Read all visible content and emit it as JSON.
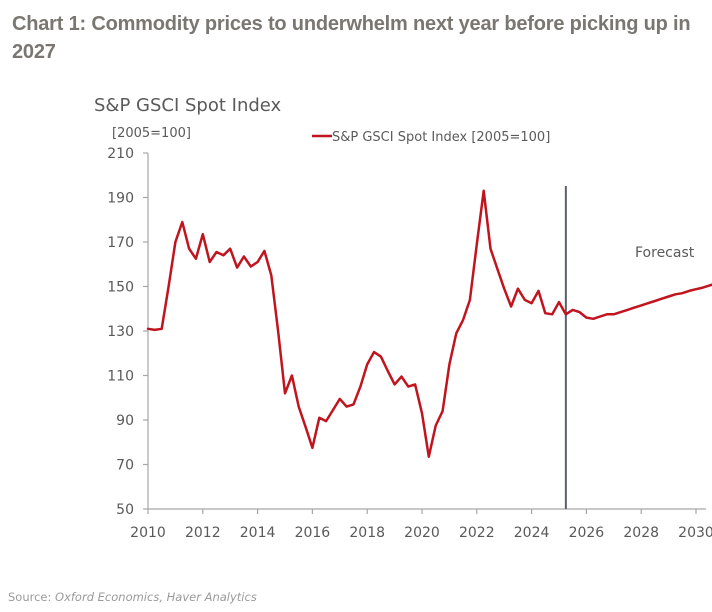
{
  "headline": "Chart 1: Commodity prices to underwhelm next year before picking up in 2027",
  "source": {
    "prefix": "Source: ",
    "names": "Oxford Economics, Haver Analytics"
  },
  "colors": {
    "series": "#c0141e",
    "axis": "#a6a6a6",
    "forecast_line": "#5b6168",
    "text": "#595959",
    "headline": "#7a7672"
  },
  "chart_data": {
    "type": "line",
    "title": "S&P GSCI Spot Index",
    "ylabel": "[2005=100]",
    "xlabel": "",
    "ylim": [
      50,
      210
    ],
    "yticks": [
      50,
      70,
      90,
      110,
      130,
      150,
      170,
      190,
      210
    ],
    "xlim": [
      2010,
      2030.75
    ],
    "xticks": [
      2010,
      2012,
      2014,
      2016,
      2018,
      2020,
      2022,
      2024,
      2026,
      2028,
      2030
    ],
    "grid": false,
    "legend": {
      "placement": "top-center",
      "entries": [
        "S&P GSCI Spot Index [2005=100]"
      ]
    },
    "annotations": [
      {
        "text": "Forecast",
        "x": 2029.2,
        "y": 168
      }
    ],
    "forecast_start": 2025.25,
    "series": [
      {
        "name": "S&P GSCI Spot Index [2005=100]",
        "x": [
          2010.0,
          2010.25,
          2010.5,
          2010.75,
          2011.0,
          2011.25,
          2011.5,
          2011.75,
          2012.0,
          2012.25,
          2012.5,
          2012.75,
          2013.0,
          2013.25,
          2013.5,
          2013.75,
          2014.0,
          2014.25,
          2014.5,
          2014.75,
          2015.0,
          2015.25,
          2015.5,
          2015.75,
          2016.0,
          2016.25,
          2016.5,
          2016.75,
          2017.0,
          2017.25,
          2017.5,
          2017.75,
          2018.0,
          2018.25,
          2018.5,
          2018.75,
          2019.0,
          2019.25,
          2019.5,
          2019.75,
          2020.0,
          2020.25,
          2020.5,
          2020.75,
          2021.0,
          2021.25,
          2021.5,
          2021.75,
          2022.0,
          2022.25,
          2022.5,
          2022.75,
          2023.0,
          2023.25,
          2023.5,
          2023.75,
          2024.0,
          2024.25,
          2024.5,
          2024.75,
          2025.0,
          2025.25,
          2025.5,
          2025.75,
          2026.0,
          2026.25,
          2026.5,
          2026.75,
          2027.0,
          2027.25,
          2027.5,
          2027.75,
          2028.0,
          2028.25,
          2028.5,
          2028.75,
          2029.0,
          2029.25,
          2029.5,
          2029.75,
          2030.0,
          2030.25,
          2030.5,
          2030.75
        ],
        "values": [
          131,
          130.5,
          131,
          150,
          170,
          179,
          167,
          162.5,
          173.5,
          161,
          165.5,
          164,
          167,
          158.5,
          163.5,
          159,
          161,
          166,
          155,
          130,
          102,
          110,
          96,
          87,
          77.5,
          91,
          89.5,
          94.5,
          99.5,
          96,
          97,
          105,
          115,
          120.5,
          118.5,
          112,
          106,
          109.5,
          105,
          106,
          93,
          73.5,
          87.5,
          94,
          115,
          129,
          135,
          144,
          169,
          193,
          167,
          158,
          149,
          141,
          149,
          144,
          142.5,
          148,
          138,
          137.5,
          143,
          137.5,
          139.5,
          138.5,
          136,
          135.5,
          136.5,
          137.5,
          137.5,
          138.5,
          139.5,
          140.5,
          141.5,
          142.5,
          143.5,
          144.5,
          145.5,
          146.5,
          147,
          148,
          148.8,
          149.5,
          150.5,
          151.5
        ]
      }
    ]
  }
}
